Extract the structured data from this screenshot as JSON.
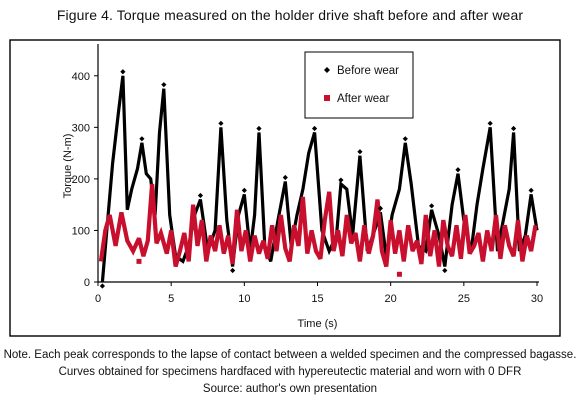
{
  "figure": {
    "title": "Figure 4. Torque measured on the holder drive shaft before and after wear",
    "notes": [
      "Note. Each peak corresponds to the lapse of contact between a welded specimen and the compressed bagasse.",
      "Curves obtained for specimens hardfaced with hypereutectic material and worn with 0 DFR",
      "Source: author's own presentation"
    ]
  },
  "chart_data": {
    "type": "line",
    "xlabel": "Time (s)",
    "ylabel": "Torque (N-m)",
    "xlim": [
      0,
      30
    ],
    "ylim": [
      0,
      450
    ],
    "xticks": [
      0,
      5,
      10,
      15,
      20,
      25,
      30
    ],
    "yticks": [
      0,
      100,
      200,
      300,
      400
    ],
    "legend_position": "top-right-inside",
    "series": [
      {
        "name": "Before wear",
        "color": "#000000",
        "marker": "diamond",
        "x": [
          0.3,
          0.6,
          1.0,
          1.4,
          1.7,
          2.0,
          2.3,
          2.7,
          3.0,
          3.3,
          3.6,
          3.9,
          4.2,
          4.5,
          4.9,
          5.3,
          5.8,
          6.2,
          6.6,
          7.0,
          7.5,
          8.0,
          8.4,
          8.8,
          9.2,
          9.6,
          10.0,
          10.4,
          10.7,
          11.0,
          11.4,
          11.8,
          12.3,
          12.8,
          13.2,
          13.6,
          14.0,
          14.4,
          14.8,
          15.3,
          15.8,
          16.3,
          16.6,
          17.0,
          17.4,
          17.9,
          18.4,
          18.9,
          19.3,
          19.7,
          20.1,
          20.6,
          21.0,
          21.4,
          21.9,
          22.4,
          22.8,
          23.3,
          23.7,
          24.2,
          24.6,
          25.0,
          25.5,
          25.9,
          26.3,
          26.8,
          27.3,
          27.7,
          28.1,
          28.4,
          28.8,
          29.2,
          29.6,
          30.0
        ],
        "y": [
          0,
          100,
          230,
          330,
          400,
          140,
          180,
          220,
          270,
          210,
          200,
          130,
          290,
          375,
          130,
          50,
          40,
          70,
          130,
          160,
          60,
          100,
          300,
          120,
          30,
          130,
          170,
          60,
          130,
          290,
          70,
          40,
          120,
          195,
          70,
          130,
          180,
          250,
          290,
          100,
          60,
          90,
          190,
          180,
          90,
          245,
          60,
          100,
          135,
          50,
          130,
          180,
          270,
          190,
          70,
          60,
          140,
          90,
          30,
          150,
          210,
          120,
          60,
          150,
          220,
          300,
          60,
          120,
          180,
          290,
          60,
          90,
          170,
          100
        ]
      },
      {
        "name": "After wear",
        "color": "#c8102e",
        "marker": "square",
        "x": [
          0.2,
          0.5,
          0.8,
          1.2,
          1.6,
          2.0,
          2.4,
          2.8,
          3.1,
          3.4,
          3.7,
          4.0,
          4.3,
          4.7,
          5.0,
          5.3,
          5.6,
          5.9,
          6.2,
          6.5,
          6.8,
          7.1,
          7.4,
          7.7,
          8.0,
          8.3,
          8.6,
          8.9,
          9.2,
          9.5,
          9.8,
          10.1,
          10.4,
          10.7,
          11.0,
          11.3,
          11.6,
          11.9,
          12.2,
          12.5,
          12.8,
          13.1,
          13.4,
          13.7,
          14.0,
          14.3,
          14.6,
          14.9,
          15.2,
          15.5,
          15.8,
          16.1,
          16.4,
          16.7,
          17.0,
          17.3,
          17.6,
          17.9,
          18.2,
          18.5,
          18.8,
          19.1,
          19.4,
          19.7,
          20.0,
          20.3,
          20.6,
          20.9,
          21.2,
          21.5,
          21.8,
          22.1,
          22.4,
          22.7,
          23.0,
          23.3,
          23.6,
          23.9,
          24.2,
          24.5,
          24.8,
          25.1,
          25.4,
          25.7,
          26.0,
          26.3,
          26.6,
          26.9,
          27.2,
          27.5,
          27.8,
          28.1,
          28.4,
          28.7,
          29.0,
          29.3,
          29.6,
          29.9
        ],
        "y": [
          40,
          100,
          130,
          70,
          135,
          80,
          60,
          85,
          50,
          80,
          190,
          75,
          95,
          55,
          100,
          30,
          60,
          95,
          40,
          150,
          70,
          120,
          40,
          90,
          60,
          110,
          55,
          90,
          35,
          140,
          60,
          100,
          40,
          90,
          55,
          80,
          45,
          110,
          60,
          130,
          65,
          40,
          110,
          70,
          165,
          55,
          100,
          60,
          45,
          120,
          175,
          60,
          100,
          50,
          130,
          75,
          95,
          40,
          110,
          55,
          90,
          160,
          60,
          30,
          120,
          55,
          100,
          40,
          110,
          60,
          80,
          35,
          130,
          50,
          100,
          30,
          120,
          70,
          50,
          110,
          45,
          130,
          55,
          70,
          95,
          40,
          100,
          60,
          130,
          45,
          110,
          70,
          50,
          120,
          40,
          90,
          60,
          110
        ]
      }
    ]
  }
}
